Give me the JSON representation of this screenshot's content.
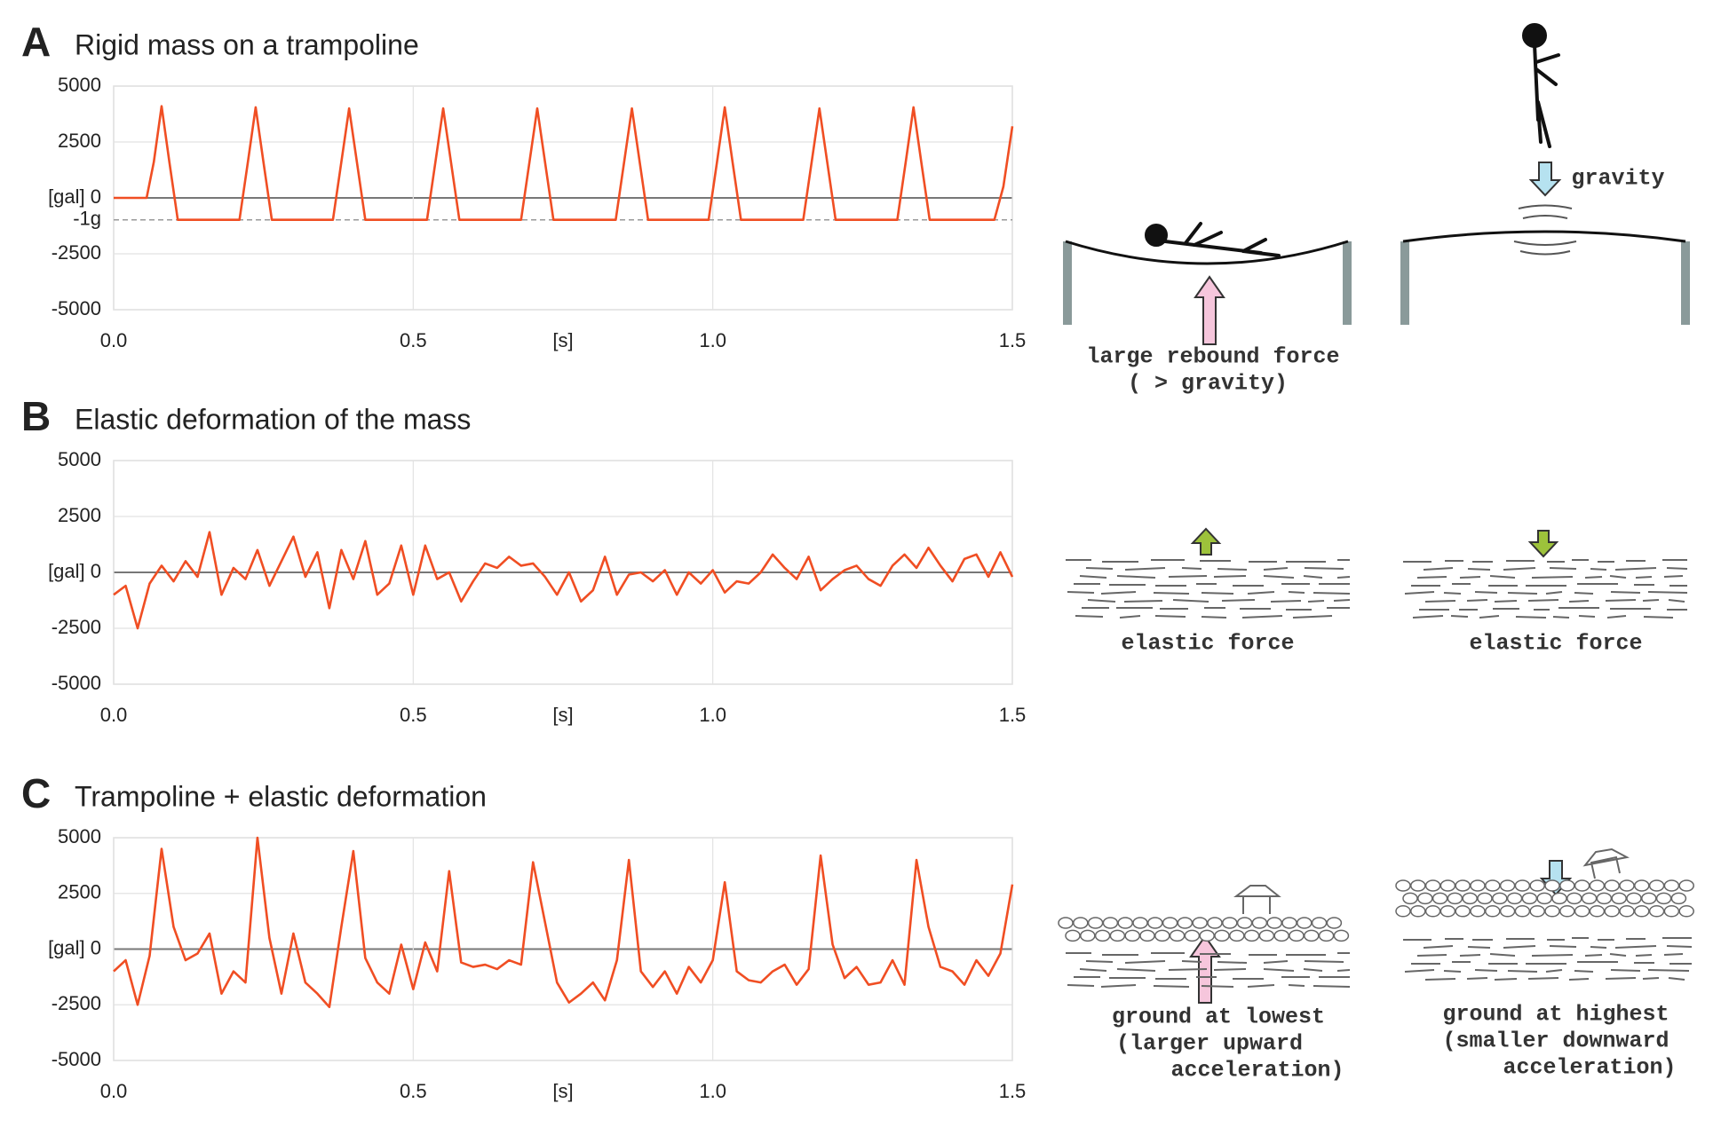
{
  "chart_data": [
    {
      "type": "line",
      "panel": "A",
      "title": "Rigid mass on a trampoline",
      "color": "#f04e23",
      "grid": true,
      "xlabel": "[s]",
      "xlim": [
        0,
        1.5
      ],
      "ylim": [
        -5000,
        5000
      ],
      "xticks": [
        {
          "value": 0,
          "label": "0.0"
        },
        0.5,
        {
          "value": 1,
          "label": "1.0"
        },
        1.5
      ],
      "yticks": [
        5000,
        2500,
        {
          "value": 0,
          "label": "[gal] 0"
        },
        -2500,
        -5000
      ],
      "annotations": [
        {
          "label": "-1g",
          "value": -980
        }
      ],
      "x": [
        0,
        0.055,
        0.067,
        0.08,
        0.093,
        0.107,
        0.21,
        0.224,
        0.237,
        0.25,
        0.264,
        0.366,
        0.38,
        0.393,
        0.406,
        0.42,
        0.523,
        0.537,
        0.55,
        0.563,
        0.577,
        0.68,
        0.694,
        0.707,
        0.72,
        0.734,
        0.838,
        0.852,
        0.865,
        0.878,
        0.892,
        0.993,
        1.007,
        1.02,
        1.033,
        1.047,
        1.151,
        1.165,
        1.178,
        1.191,
        1.205,
        1.308,
        1.322,
        1.335,
        1.348,
        1.362,
        1.47,
        1.485,
        1.5
      ],
      "values": [
        0,
        0,
        1600,
        4100,
        1600,
        -980,
        -980,
        1600,
        4050,
        1600,
        -980,
        -980,
        1600,
        4000,
        1600,
        -980,
        -980,
        1600,
        4000,
        1600,
        -980,
        -980,
        1600,
        4000,
        1600,
        -980,
        -980,
        1600,
        4000,
        1600,
        -980,
        -980,
        1600,
        4050,
        1600,
        -980,
        -980,
        1600,
        4000,
        1600,
        -980,
        -980,
        1600,
        4050,
        1600,
        -980,
        -980,
        500,
        3200
      ]
    },
    {
      "type": "line",
      "panel": "B",
      "title": "Elastic deformation of the mass",
      "color": "#f04e23",
      "grid": true,
      "xlabel": "[s]",
      "xlim": [
        0,
        1.5
      ],
      "ylim": [
        -5000,
        5000
      ],
      "xticks": [
        {
          "value": 0,
          "label": "0.0"
        },
        0.5,
        {
          "value": 1,
          "label": "1.0"
        },
        1.5
      ],
      "yticks": [
        5000,
        2500,
        {
          "value": 0,
          "label": "[gal] 0"
        },
        -2500,
        -5000
      ],
      "x": [
        0,
        0.02,
        0.04,
        0.06,
        0.08,
        0.1,
        0.12,
        0.14,
        0.16,
        0.18,
        0.2,
        0.22,
        0.24,
        0.26,
        0.28,
        0.3,
        0.32,
        0.34,
        0.36,
        0.38,
        0.4,
        0.42,
        0.44,
        0.46,
        0.48,
        0.5,
        0.52,
        0.54,
        0.56,
        0.58,
        0.6,
        0.62,
        0.64,
        0.66,
        0.68,
        0.7,
        0.72,
        0.74,
        0.76,
        0.78,
        0.8,
        0.82,
        0.84,
        0.86,
        0.88,
        0.9,
        0.92,
        0.94,
        0.96,
        0.98,
        1,
        1.02,
        1.04,
        1.06,
        1.08,
        1.1,
        1.12,
        1.14,
        1.16,
        1.18,
        1.2,
        1.22,
        1.24,
        1.26,
        1.28,
        1.3,
        1.32,
        1.34,
        1.36,
        1.38,
        1.4,
        1.42,
        1.44,
        1.46,
        1.48,
        1.5
      ],
      "values": [
        -1000,
        -600,
        -2500,
        -500,
        300,
        -400,
        500,
        -200,
        1800,
        -1000,
        200,
        -300,
        1000,
        -600,
        500,
        1600,
        -200,
        900,
        -1600,
        1000,
        -300,
        1400,
        -1000,
        -500,
        1200,
        -1000,
        1200,
        -300,
        0,
        -1300,
        -400,
        400,
        200,
        700,
        300,
        400,
        -200,
        -1000,
        0,
        -1300,
        -800,
        700,
        -1000,
        -100,
        0,
        -400,
        100,
        -1000,
        0,
        -500,
        100,
        -900,
        -400,
        -500,
        0,
        800,
        200,
        -300,
        700,
        -800,
        -300,
        100,
        300,
        -300,
        -600,
        300,
        800,
        200,
        1100,
        300,
        -400,
        600,
        800,
        -200,
        900,
        -200
      ]
    },
    {
      "type": "line",
      "panel": "C",
      "title": "Trampoline + elastic deformation",
      "color": "#f04e23",
      "grid": true,
      "xlabel": "[s]",
      "xlim": [
        0,
        1.5
      ],
      "ylim": [
        -5000,
        5000
      ],
      "xticks": [
        {
          "value": 0,
          "label": "0.0"
        },
        0.5,
        {
          "value": 1,
          "label": "1.0"
        },
        1.5
      ],
      "yticks": [
        5000,
        2500,
        {
          "value": 0,
          "label": "[gal] 0"
        },
        -2500,
        -5000
      ],
      "x": [
        0,
        0.02,
        0.04,
        0.06,
        0.08,
        0.1,
        0.12,
        0.14,
        0.16,
        0.18,
        0.2,
        0.22,
        0.24,
        0.26,
        0.28,
        0.3,
        0.32,
        0.34,
        0.36,
        0.38,
        0.4,
        0.42,
        0.44,
        0.46,
        0.48,
        0.5,
        0.52,
        0.54,
        0.56,
        0.58,
        0.6,
        0.62,
        0.64,
        0.66,
        0.68,
        0.7,
        0.72,
        0.74,
        0.76,
        0.78,
        0.8,
        0.82,
        0.84,
        0.86,
        0.88,
        0.9,
        0.92,
        0.94,
        0.96,
        0.98,
        1,
        1.02,
        1.04,
        1.06,
        1.08,
        1.1,
        1.12,
        1.14,
        1.16,
        1.18,
        1.2,
        1.22,
        1.24,
        1.26,
        1.28,
        1.3,
        1.32,
        1.34,
        1.36,
        1.38,
        1.4,
        1.42,
        1.44,
        1.46,
        1.48,
        1.5
      ],
      "values": [
        -1000,
        -500,
        -2500,
        -300,
        4500,
        1000,
        -500,
        -200,
        700,
        -2000,
        -1000,
        -1500,
        5000,
        500,
        -2000,
        700,
        -1500,
        -2000,
        -2600,
        1000,
        4400,
        -400,
        -1500,
        -2000,
        200,
        -1800,
        300,
        -1000,
        3500,
        -600,
        -800,
        -700,
        -900,
        -500,
        -700,
        3900,
        1200,
        -1500,
        -2400,
        -2000,
        -1500,
        -2300,
        -500,
        4000,
        -1000,
        -1700,
        -1000,
        -2000,
        -800,
        -1500,
        -500,
        3000,
        -1000,
        -1400,
        -1500,
        -1000,
        -700,
        -1600,
        -900,
        4200,
        200,
        -1300,
        -800,
        -1600,
        -1500,
        -500,
        -1600,
        4000,
        1000,
        -800,
        -1000,
        -1600,
        -500,
        -1200,
        -200,
        2900
      ]
    }
  ],
  "diagram_labels": [
    "gravity",
    "large rebound force",
    "( > gravity)",
    "elastic force",
    "elastic force",
    "ground at lowest",
    "(larger upward",
    "acceleration)",
    "ground at highest",
    "(smaller downward",
    "acceleration)"
  ]
}
